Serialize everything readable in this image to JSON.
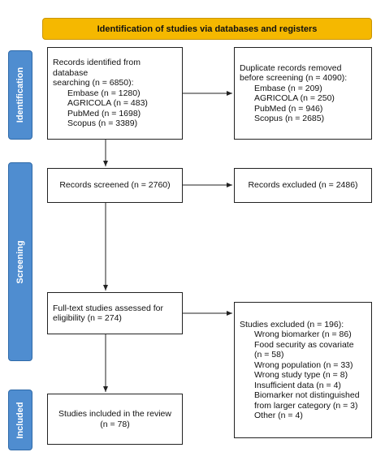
{
  "header": "Identification of studies via databases and registers",
  "phases": [
    "Identification",
    "Screening",
    "Included"
  ],
  "boxes": [
    {
      "lines": [
        "Records identified from database",
        "searching (n = 6850):",
        "Embase (n = 1280)",
        "AGRICOLA (n = 483)",
        "PubMed (n = 1698)",
        "Scopus (n = 3389)"
      ]
    },
    {
      "lines": [
        "Duplicate records removed",
        "before screening (n = 4090):",
        "Embase (n = 209)",
        "AGRICOLA (n = 250)",
        "PubMed (n = 946)",
        "Scopus (n = 2685)"
      ]
    },
    {
      "lines": [
        "Records screened (n = 2760)"
      ]
    },
    {
      "lines": [
        "Records excluded (n = 2486)"
      ]
    },
    {
      "lines": [
        "Full-text studies assessed for",
        "eligibility (n = 274)"
      ]
    },
    {
      "lines": [
        "Studies excluded (n = 196):",
        "Wrong biomarker (n = 86)",
        "Food security as covariate",
        "(n = 58)",
        "Wrong population (n = 33)",
        "Wrong study type (n = 8)",
        "Insufficient data (n = 4)",
        "Biomarker not distinguished",
        "from larger category (n = 3)",
        "Other (n = 4)"
      ]
    },
    {
      "lines": [
        "Studies included in the review",
        "(n = 78)"
      ]
    }
  ]
}
